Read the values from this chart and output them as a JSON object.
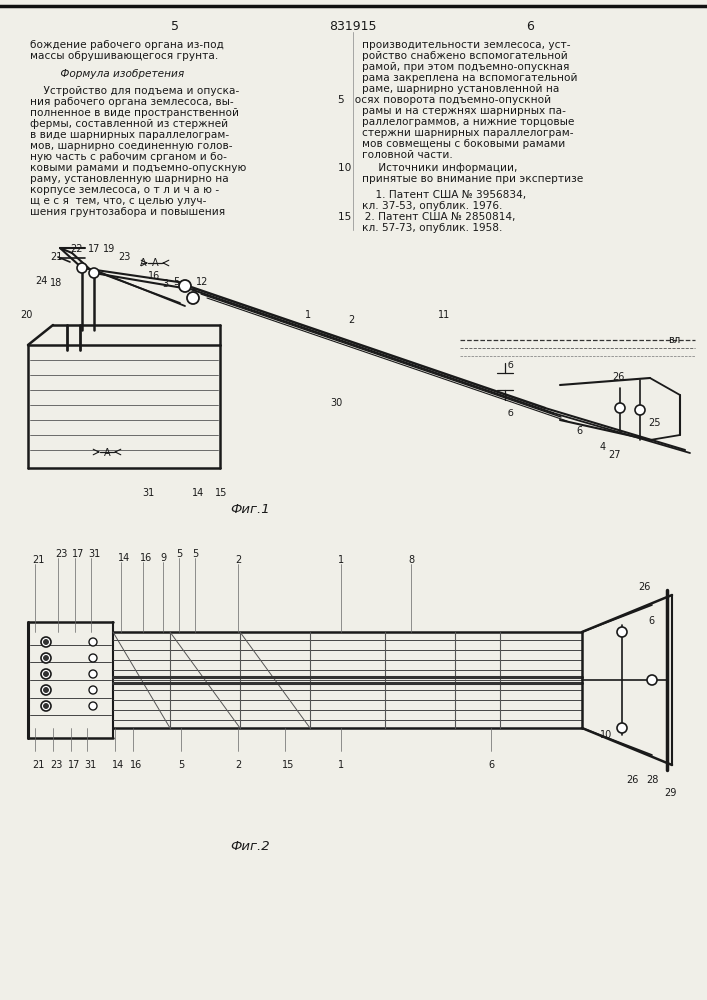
{
  "page_width": 7.07,
  "page_height": 10.0,
  "bg_color": "#f0efe8",
  "text_color": "#1a1a1a",
  "header": {
    "left_num": "5",
    "center_num": "831915",
    "right_num": "6"
  }
}
